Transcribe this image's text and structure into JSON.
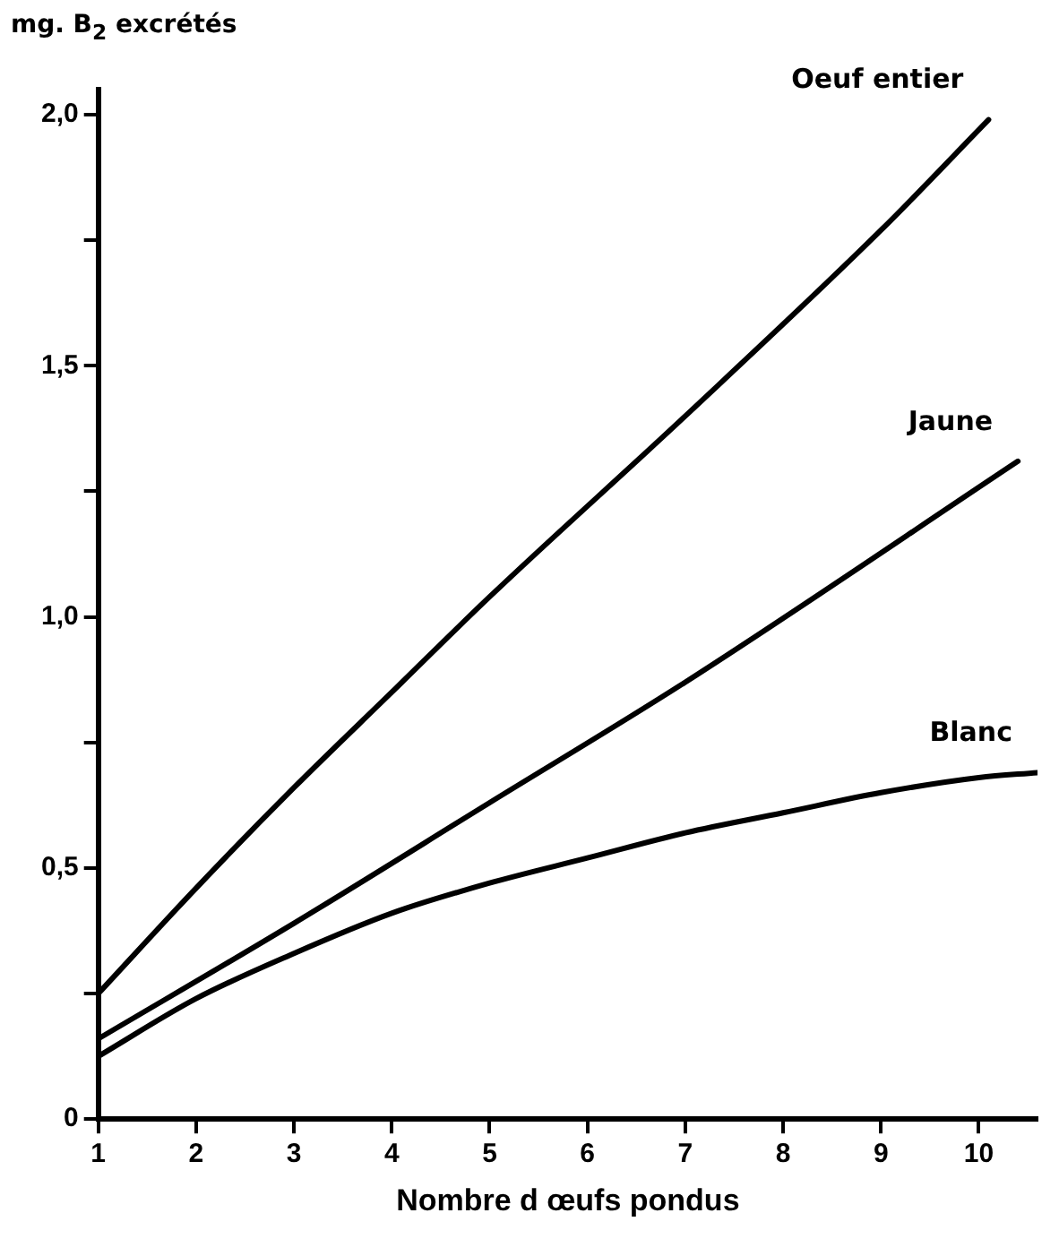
{
  "chart_data": {
    "type": "line",
    "xlabel": "Nombre d œufs pondus",
    "ylabel": "mg. B$_{2}$ excrétés",
    "xlim": [
      1,
      10.6
    ],
    "xticks": [
      1,
      2,
      3,
      4,
      5,
      6,
      7,
      8,
      9,
      10
    ],
    "ylim": [
      0,
      2.05
    ],
    "yticks": [
      0,
      {
        "value": 0.25,
        "label": null
      },
      {
        "value": 0.5,
        "label": "0,5"
      },
      {
        "value": 0.75,
        "label": null
      },
      {
        "value": 1,
        "label": "1,0"
      },
      {
        "value": 1.25,
        "label": null
      },
      {
        "value": 1.5,
        "label": "1,5"
      },
      {
        "value": 1.75,
        "label": null
      },
      {
        "value": 2,
        "label": "2,0"
      }
    ],
    "grid": false,
    "legend": false,
    "marker": "none",
    "line_style": "solid",
    "series": [
      {
        "name": "Oeuf entier",
        "color": "#000000",
        "x": [
          1,
          2,
          3,
          4,
          5,
          7,
          9,
          10.1
        ],
        "values": [
          0.25,
          0.46,
          0.66,
          0.85,
          1.04,
          1.4,
          1.77,
          1.99
        ]
      },
      {
        "name": "Jaune",
        "color": "#000000",
        "x": [
          1,
          3,
          5,
          7,
          10.4
        ],
        "values": [
          0.16,
          0.39,
          0.63,
          0.87,
          1.31
        ]
      },
      {
        "name": "Blanc",
        "color": "#000000",
        "x": [
          1,
          2,
          3,
          4,
          5,
          6,
          7,
          8,
          9,
          10,
          10.6
        ],
        "values": [
          0.125,
          0.24,
          0.33,
          0.41,
          0.47,
          0.52,
          0.57,
          0.61,
          0.65,
          0.68,
          0.69
        ]
      }
    ]
  }
}
